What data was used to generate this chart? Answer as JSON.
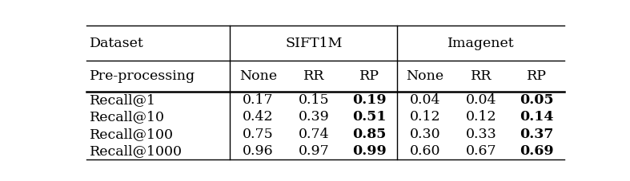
{
  "header_row1": [
    "Dataset",
    "SIFT1M",
    "Imagenet"
  ],
  "header_row2": [
    "Pre-processing",
    "None",
    "RR",
    "RP",
    "None",
    "RR",
    "RP"
  ],
  "rows": [
    [
      "Recall@1",
      "0.17",
      "0.15",
      "0.19",
      "0.04",
      "0.04",
      "0.05"
    ],
    [
      "Recall@10",
      "0.42",
      "0.39",
      "0.51",
      "0.12",
      "0.12",
      "0.14"
    ],
    [
      "Recall@100",
      "0.75",
      "0.74",
      "0.85",
      "0.30",
      "0.33",
      "0.37"
    ],
    [
      "Recall@1000",
      "0.96",
      "0.97",
      "0.99",
      "0.60",
      "0.67",
      "0.69"
    ]
  ],
  "bold_cols": [
    3,
    6
  ],
  "bg_color": "#ffffff",
  "text_color": "#000000",
  "fontsize": 12.5
}
